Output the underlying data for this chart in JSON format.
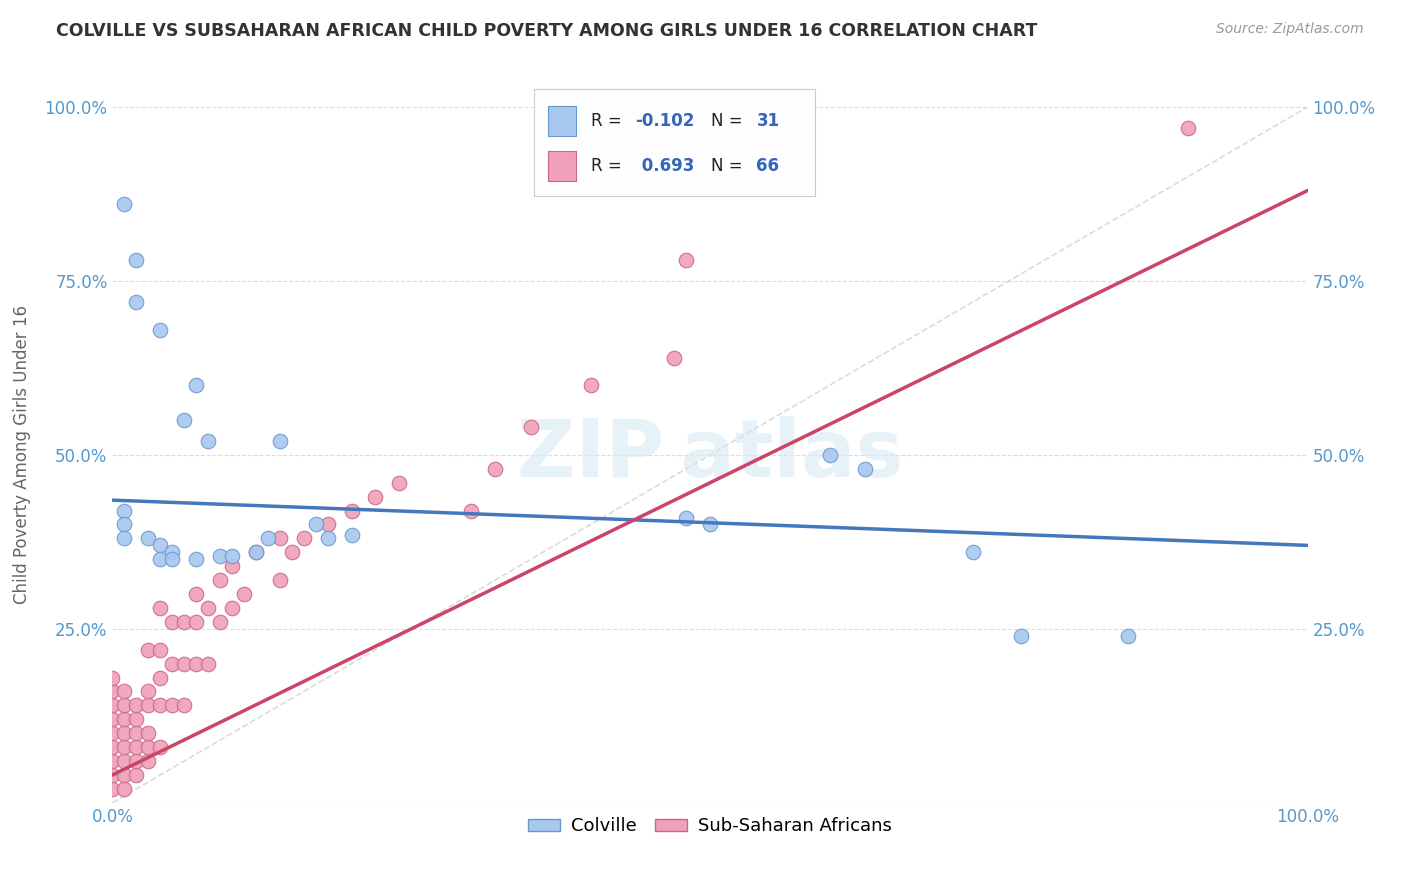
{
  "title": "COLVILLE VS SUBSAHARAN AFRICAN CHILD POVERTY AMONG GIRLS UNDER 16 CORRELATION CHART",
  "source": "Source: ZipAtlas.com",
  "ylabel": "Child Poverty Among Girls Under 16",
  "xlim": [
    0,
    1
  ],
  "ylim": [
    0,
    1
  ],
  "colville_R": -0.102,
  "colville_N": 31,
  "subsaharan_R": 0.693,
  "subsaharan_N": 66,
  "colville_color": "#A8C8F0",
  "colville_edge": "#6699CC",
  "subsaharan_color": "#F0A0B8",
  "subsaharan_edge": "#CC6688",
  "trendline_colville": "#4477BB",
  "trendline_subsaharan": "#CC4466",
  "diagonal_color": "#CCCCCC",
  "colville_trendline": [
    [
      0.0,
      0.435
    ],
    [
      1.0,
      0.37
    ]
  ],
  "subsaharan_trendline": [
    [
      0.0,
      0.04
    ],
    [
      1.0,
      0.88
    ]
  ],
  "colville_points": [
    [
      0.01,
      0.86
    ],
    [
      0.02,
      0.78
    ],
    [
      0.02,
      0.72
    ],
    [
      0.04,
      0.68
    ],
    [
      0.07,
      0.6
    ],
    [
      0.01,
      0.42
    ],
    [
      0.01,
      0.4
    ],
    [
      0.01,
      0.38
    ],
    [
      0.03,
      0.38
    ],
    [
      0.04,
      0.37
    ],
    [
      0.05,
      0.36
    ],
    [
      0.04,
      0.35
    ],
    [
      0.05,
      0.35
    ],
    [
      0.07,
      0.35
    ],
    [
      0.09,
      0.355
    ],
    [
      0.1,
      0.355
    ],
    [
      0.12,
      0.36
    ],
    [
      0.13,
      0.38
    ],
    [
      0.06,
      0.55
    ],
    [
      0.08,
      0.52
    ],
    [
      0.14,
      0.52
    ],
    [
      0.17,
      0.4
    ],
    [
      0.18,
      0.38
    ],
    [
      0.2,
      0.385
    ],
    [
      0.48,
      0.41
    ],
    [
      0.5,
      0.4
    ],
    [
      0.6,
      0.5
    ],
    [
      0.63,
      0.48
    ],
    [
      0.72,
      0.36
    ],
    [
      0.76,
      0.24
    ],
    [
      0.85,
      0.24
    ]
  ],
  "subsaharan_points": [
    [
      0.0,
      0.02
    ],
    [
      0.0,
      0.04
    ],
    [
      0.0,
      0.06
    ],
    [
      0.0,
      0.08
    ],
    [
      0.0,
      0.1
    ],
    [
      0.0,
      0.12
    ],
    [
      0.0,
      0.14
    ],
    [
      0.0,
      0.16
    ],
    [
      0.0,
      0.18
    ],
    [
      0.01,
      0.02
    ],
    [
      0.01,
      0.04
    ],
    [
      0.01,
      0.06
    ],
    [
      0.01,
      0.08
    ],
    [
      0.01,
      0.1
    ],
    [
      0.01,
      0.12
    ],
    [
      0.01,
      0.14
    ],
    [
      0.01,
      0.16
    ],
    [
      0.02,
      0.04
    ],
    [
      0.02,
      0.06
    ],
    [
      0.02,
      0.08
    ],
    [
      0.02,
      0.1
    ],
    [
      0.02,
      0.12
    ],
    [
      0.02,
      0.14
    ],
    [
      0.03,
      0.06
    ],
    [
      0.03,
      0.08
    ],
    [
      0.03,
      0.1
    ],
    [
      0.03,
      0.14
    ],
    [
      0.03,
      0.16
    ],
    [
      0.03,
      0.22
    ],
    [
      0.04,
      0.08
    ],
    [
      0.04,
      0.14
    ],
    [
      0.04,
      0.18
    ],
    [
      0.04,
      0.22
    ],
    [
      0.04,
      0.28
    ],
    [
      0.05,
      0.14
    ],
    [
      0.05,
      0.2
    ],
    [
      0.05,
      0.26
    ],
    [
      0.06,
      0.14
    ],
    [
      0.06,
      0.2
    ],
    [
      0.06,
      0.26
    ],
    [
      0.07,
      0.2
    ],
    [
      0.07,
      0.26
    ],
    [
      0.07,
      0.3
    ],
    [
      0.08,
      0.2
    ],
    [
      0.08,
      0.28
    ],
    [
      0.09,
      0.26
    ],
    [
      0.09,
      0.32
    ],
    [
      0.1,
      0.28
    ],
    [
      0.1,
      0.34
    ],
    [
      0.11,
      0.3
    ],
    [
      0.12,
      0.36
    ],
    [
      0.14,
      0.32
    ],
    [
      0.14,
      0.38
    ],
    [
      0.15,
      0.36
    ],
    [
      0.16,
      0.38
    ],
    [
      0.18,
      0.4
    ],
    [
      0.2,
      0.42
    ],
    [
      0.22,
      0.44
    ],
    [
      0.24,
      0.46
    ],
    [
      0.3,
      0.42
    ],
    [
      0.32,
      0.48
    ],
    [
      0.35,
      0.54
    ],
    [
      0.4,
      0.6
    ],
    [
      0.47,
      0.64
    ],
    [
      0.48,
      0.78
    ],
    [
      0.9,
      0.97
    ]
  ],
  "background_color": "#FFFFFF",
  "grid_color": "#DDDDDD",
  "title_color": "#333333",
  "axis_label_color": "#666666",
  "tick_color": "#5599CC"
}
